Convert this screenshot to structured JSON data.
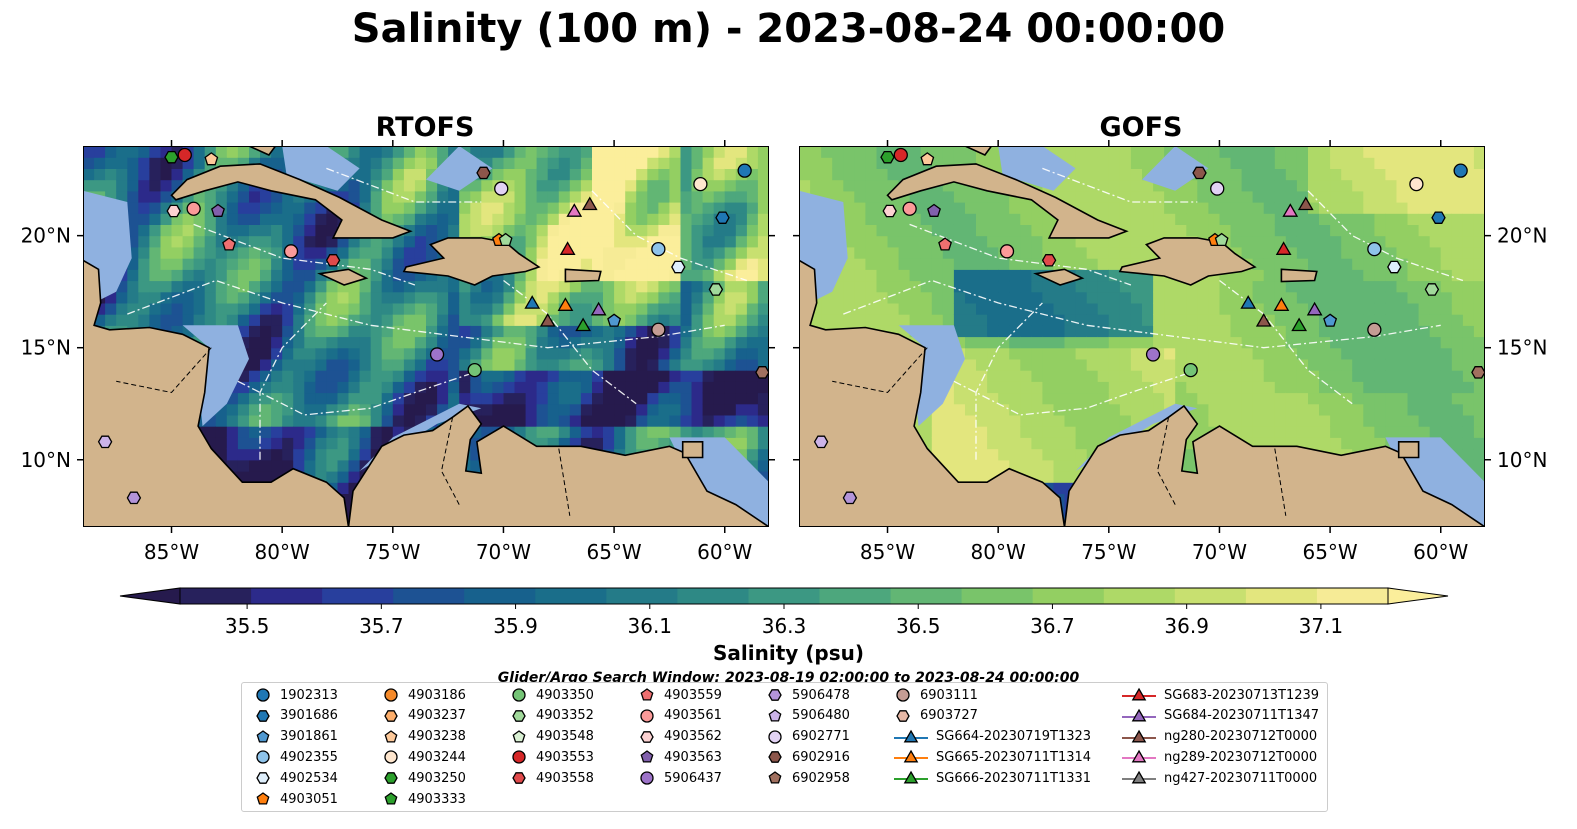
{
  "figure": {
    "title": "Salinity (100 m) - 2023-08-24 00:00:00",
    "panels": [
      {
        "name": "RTOFS"
      },
      {
        "name": "GOFS"
      }
    ]
  },
  "chart_data": [
    {
      "type": "heatmap",
      "title": "RTOFS",
      "variable": "Salinity (psu)",
      "x_ticks": [
        "85°W",
        "80°W",
        "75°W",
        "70°W",
        "65°W",
        "60°W"
      ],
      "y_ticks": [
        "20°N",
        "15°N",
        "10°N"
      ],
      "xlim": [
        -89,
        -58
      ],
      "ylim": [
        7,
        24
      ],
      "colors": {
        "land": "#d2b48c",
        "shelf": "#8fb1e0",
        "coast": "#000000"
      }
    },
    {
      "type": "heatmap",
      "title": "GOFS",
      "variable": "Salinity (psu)",
      "x_ticks": [
        "85°W",
        "80°W",
        "75°W",
        "70°W",
        "65°W",
        "60°W"
      ],
      "y_ticks": [
        "20°N",
        "15°N",
        "10°N"
      ],
      "xlim": [
        -89,
        -58
      ],
      "ylim": [
        7,
        24
      ],
      "colors": {
        "land": "#d2b48c",
        "shelf": "#8fb1e0",
        "coast": "#000000"
      }
    }
  ],
  "colorbar": {
    "label": "Salinity (psu)",
    "min": 35.4,
    "max": 37.2,
    "tick_labels": [
      "35.5",
      "35.7",
      "35.9",
      "36.1",
      "36.3",
      "36.5",
      "36.7",
      "36.9",
      "37.1"
    ],
    "colors": [
      "#27215c",
      "#2c2a8a",
      "#283f9d",
      "#1d5293",
      "#17618d",
      "#1a6e8a",
      "#247b88",
      "#2e8985",
      "#3c9883",
      "#4da77d",
      "#62b674",
      "#79c46a",
      "#93cf62",
      "#aed967",
      "#c8e070",
      "#e3e67e",
      "#f6eb96"
    ],
    "extend_low": "#261a4d",
    "extend_high": "#fbee9b"
  },
  "legend": {
    "title": "Glider/Argo Search Window: 2023-08-19 02:00:00 to 2023-08-24 00:00:00",
    "columns": [
      [
        {
          "label": "1902313",
          "marker": "circle",
          "color": "#1f77b4"
        },
        {
          "label": "3901686",
          "marker": "hexagon",
          "color": "#1f77b4"
        },
        {
          "label": "3901861",
          "marker": "pentagon",
          "color": "#4f98d0"
        },
        {
          "label": "4902355",
          "marker": "circle",
          "color": "#8ec3ea"
        },
        {
          "label": "4902534",
          "marker": "hexagon",
          "color": "#deeefb"
        },
        {
          "label": "4903051",
          "marker": "pentagon",
          "color": "#ff7f0e"
        }
      ],
      [
        {
          "label": "4903186",
          "marker": "circle",
          "color": "#f58a2a"
        },
        {
          "label": "4903237",
          "marker": "hexagon",
          "color": "#fdae6b"
        },
        {
          "label": "4903238",
          "marker": "pentagon",
          "color": "#fdc99a"
        },
        {
          "label": "4903244",
          "marker": "circle",
          "color": "#fee6ce"
        },
        {
          "label": "4903250",
          "marker": "hexagon",
          "color": "#2ca02c"
        },
        {
          "label": "4903333",
          "marker": "pentagon",
          "color": "#2ca02c"
        }
      ],
      [
        {
          "label": "4903350",
          "marker": "circle",
          "color": "#74c476"
        },
        {
          "label": "4903352",
          "marker": "hexagon",
          "color": "#a1d99b"
        },
        {
          "label": "4903548",
          "marker": "pentagon",
          "color": "#d9f0d3"
        },
        {
          "label": "4903553",
          "marker": "circle",
          "color": "#d62728"
        },
        {
          "label": "4903558",
          "marker": "hexagon",
          "color": "#e04a4b"
        }
      ],
      [
        {
          "label": "4903559",
          "marker": "pentagon",
          "color": "#ee6f70"
        },
        {
          "label": "4903561",
          "marker": "circle",
          "color": "#fb9a99"
        },
        {
          "label": "4903562",
          "marker": "hexagon",
          "color": "#fcd2d2"
        },
        {
          "label": "4903563",
          "marker": "pentagon",
          "color": "#8160ac"
        },
        {
          "label": "5906437",
          "marker": "circle",
          "color": "#9d73c9"
        }
      ],
      [
        {
          "label": "5906478",
          "marker": "hexagon",
          "color": "#b394d9"
        },
        {
          "label": "5906480",
          "marker": "pentagon",
          "color": "#ccb3e8"
        },
        {
          "label": "6902771",
          "marker": "circle",
          "color": "#e2d2f4"
        },
        {
          "label": "6902916",
          "marker": "hexagon",
          "color": "#8c564b"
        },
        {
          "label": "6902958",
          "marker": "pentagon",
          "color": "#a1705f"
        }
      ],
      [
        {
          "label": "6903111",
          "marker": "circle",
          "color": "#c49c94"
        },
        {
          "label": "6903727",
          "marker": "hexagon",
          "color": "#e6b8a6"
        },
        {
          "label": "SG664-20230719T1323",
          "marker": "triangle",
          "color": "#1f77b4"
        },
        {
          "label": "SG665-20230711T1314",
          "marker": "triangle",
          "color": "#ff7f0e"
        },
        {
          "label": "SG666-20230711T1331",
          "marker": "triangle",
          "color": "#2ca02c"
        }
      ],
      [
        {
          "label": "SG683-20230713T1239",
          "marker": "triangle",
          "color": "#d62728"
        },
        {
          "label": "SG684-20230711T1347",
          "marker": "triangle",
          "color": "#9467bd"
        },
        {
          "label": "ng280-20230712T0000",
          "marker": "triangle",
          "color": "#8c564b"
        },
        {
          "label": "ng289-20230712T0000",
          "marker": "triangle",
          "color": "#e377c2"
        },
        {
          "label": "ng427-20230711T0000",
          "marker": "triangle",
          "color": "#7f7f7f"
        }
      ]
    ]
  },
  "map_markers": [
    {
      "lon": -85.0,
      "lat": 23.5,
      "marker": "hexagon",
      "color": "#2ca02c"
    },
    {
      "lon": -84.4,
      "lat": 23.6,
      "marker": "circle",
      "color": "#d62728"
    },
    {
      "lon": -84.0,
      "lat": 21.2,
      "marker": "circle",
      "color": "#fb9a99"
    },
    {
      "lon": -83.2,
      "lat": 23.4,
      "marker": "pentagon",
      "color": "#fdc99a"
    },
    {
      "lon": -84.9,
      "lat": 21.1,
      "marker": "hexagon",
      "color": "#fcd2d2"
    },
    {
      "lon": -82.9,
      "lat": 21.1,
      "marker": "pentagon",
      "color": "#8160ac"
    },
    {
      "lon": -82.4,
      "lat": 19.6,
      "marker": "pentagon",
      "color": "#ee6f70"
    },
    {
      "lon": -79.6,
      "lat": 19.3,
      "marker": "circle",
      "color": "#fb9a99"
    },
    {
      "lon": -77.7,
      "lat": 18.9,
      "marker": "hexagon",
      "color": "#e04a4b"
    },
    {
      "lon": -70.9,
      "lat": 22.8,
      "marker": "hexagon",
      "color": "#8c564b"
    },
    {
      "lon": -70.1,
      "lat": 22.1,
      "marker": "circle",
      "color": "#e2d2f4"
    },
    {
      "lon": -70.2,
      "lat": 19.8,
      "marker": "pentagon",
      "color": "#ff7f0e"
    },
    {
      "lon": -69.9,
      "lat": 19.8,
      "marker": "pentagon",
      "color": "#a1d99b"
    },
    {
      "lon": -66.8,
      "lat": 21.1,
      "marker": "triangle",
      "color": "#e377c2"
    },
    {
      "lon": -66.1,
      "lat": 21.4,
      "marker": "triangle",
      "color": "#8c564b"
    },
    {
      "lon": -67.1,
      "lat": 19.4,
      "marker": "triangle",
      "color": "#d62728"
    },
    {
      "lon": -63.0,
      "lat": 19.4,
      "marker": "circle",
      "color": "#8ec3ea"
    },
    {
      "lon": -61.1,
      "lat": 22.3,
      "marker": "circle",
      "color": "#fee6ce"
    },
    {
      "lon": -59.1,
      "lat": 22.9,
      "marker": "circle",
      "color": "#1f77b4"
    },
    {
      "lon": -60.1,
      "lat": 20.8,
      "marker": "hexagon",
      "color": "#1f77b4"
    },
    {
      "lon": -62.1,
      "lat": 18.6,
      "marker": "hexagon",
      "color": "#deeefb"
    },
    {
      "lon": -60.4,
      "lat": 17.6,
      "marker": "hexagon",
      "color": "#a1d99b"
    },
    {
      "lon": -68.7,
      "lat": 17.0,
      "marker": "triangle",
      "color": "#1f77b4"
    },
    {
      "lon": -68.0,
      "lat": 16.2,
      "marker": "triangle",
      "color": "#8c564b"
    },
    {
      "lon": -67.2,
      "lat": 16.9,
      "marker": "triangle",
      "color": "#ff7f0e"
    },
    {
      "lon": -66.4,
      "lat": 16.0,
      "marker": "triangle",
      "color": "#2ca02c"
    },
    {
      "lon": -65.7,
      "lat": 16.7,
      "marker": "triangle",
      "color": "#9467bd"
    },
    {
      "lon": -65.0,
      "lat": 16.2,
      "marker": "pentagon",
      "color": "#4f98d0"
    },
    {
      "lon": -63.0,
      "lat": 15.8,
      "marker": "circle",
      "color": "#c49c94"
    },
    {
      "lon": -73.0,
      "lat": 14.7,
      "marker": "circle",
      "color": "#9d73c9"
    },
    {
      "lon": -71.3,
      "lat": 14.0,
      "marker": "circle",
      "color": "#74c476"
    },
    {
      "lon": -58.3,
      "lat": 13.9,
      "marker": "hexagon",
      "color": "#a1705f"
    },
    {
      "lon": -88.0,
      "lat": 10.8,
      "marker": "hexagon",
      "color": "#ccb3e8"
    },
    {
      "lon": -86.7,
      "lat": 8.3,
      "marker": "hexagon",
      "color": "#b394d9"
    }
  ]
}
